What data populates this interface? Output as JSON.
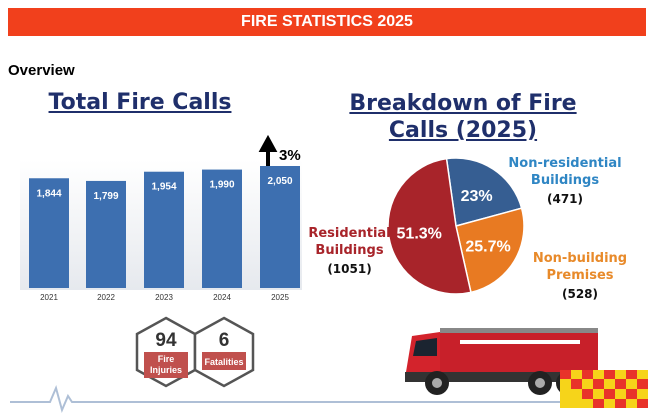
{
  "header": {
    "title": "FIRE STATISTICS 2025"
  },
  "section": "Overview",
  "bar_chart": {
    "type": "bar",
    "title": "Total Fire Calls",
    "categories": [
      "2021",
      "2022",
      "2023",
      "2024",
      "2025"
    ],
    "values": [
      1844,
      1799,
      1954,
      1990,
      2050
    ],
    "value_labels": [
      "1,844",
      "1,799",
      "1,954",
      "1,990",
      "2,050"
    ],
    "color": "#3d6fb0",
    "change": "3%"
  },
  "pie_chart": {
    "type": "pie",
    "title": "Breakdown of Fire Calls (2025)",
    "slices": [
      {
        "name": "Non-residential Buildings",
        "value": 23,
        "value_label": "23%",
        "count": "(471)",
        "color": "#365e92",
        "label_color": "#2f86c4"
      },
      {
        "name": "Non-building Premises",
        "value": 25.7,
        "value_label": "25.7%",
        "count": "(528)",
        "color": "#e87a22",
        "label_color": "#e88a2a"
      },
      {
        "name": "Residential Buildings",
        "value": 51.3,
        "value_label": "51.3%",
        "count": "(1051)",
        "color": "#a8242a",
        "label_color": "#a8242a"
      }
    ]
  },
  "stats": [
    {
      "value": 94,
      "label": "Fire Injuries"
    },
    {
      "value": 6,
      "label": "Fatalities"
    }
  ]
}
